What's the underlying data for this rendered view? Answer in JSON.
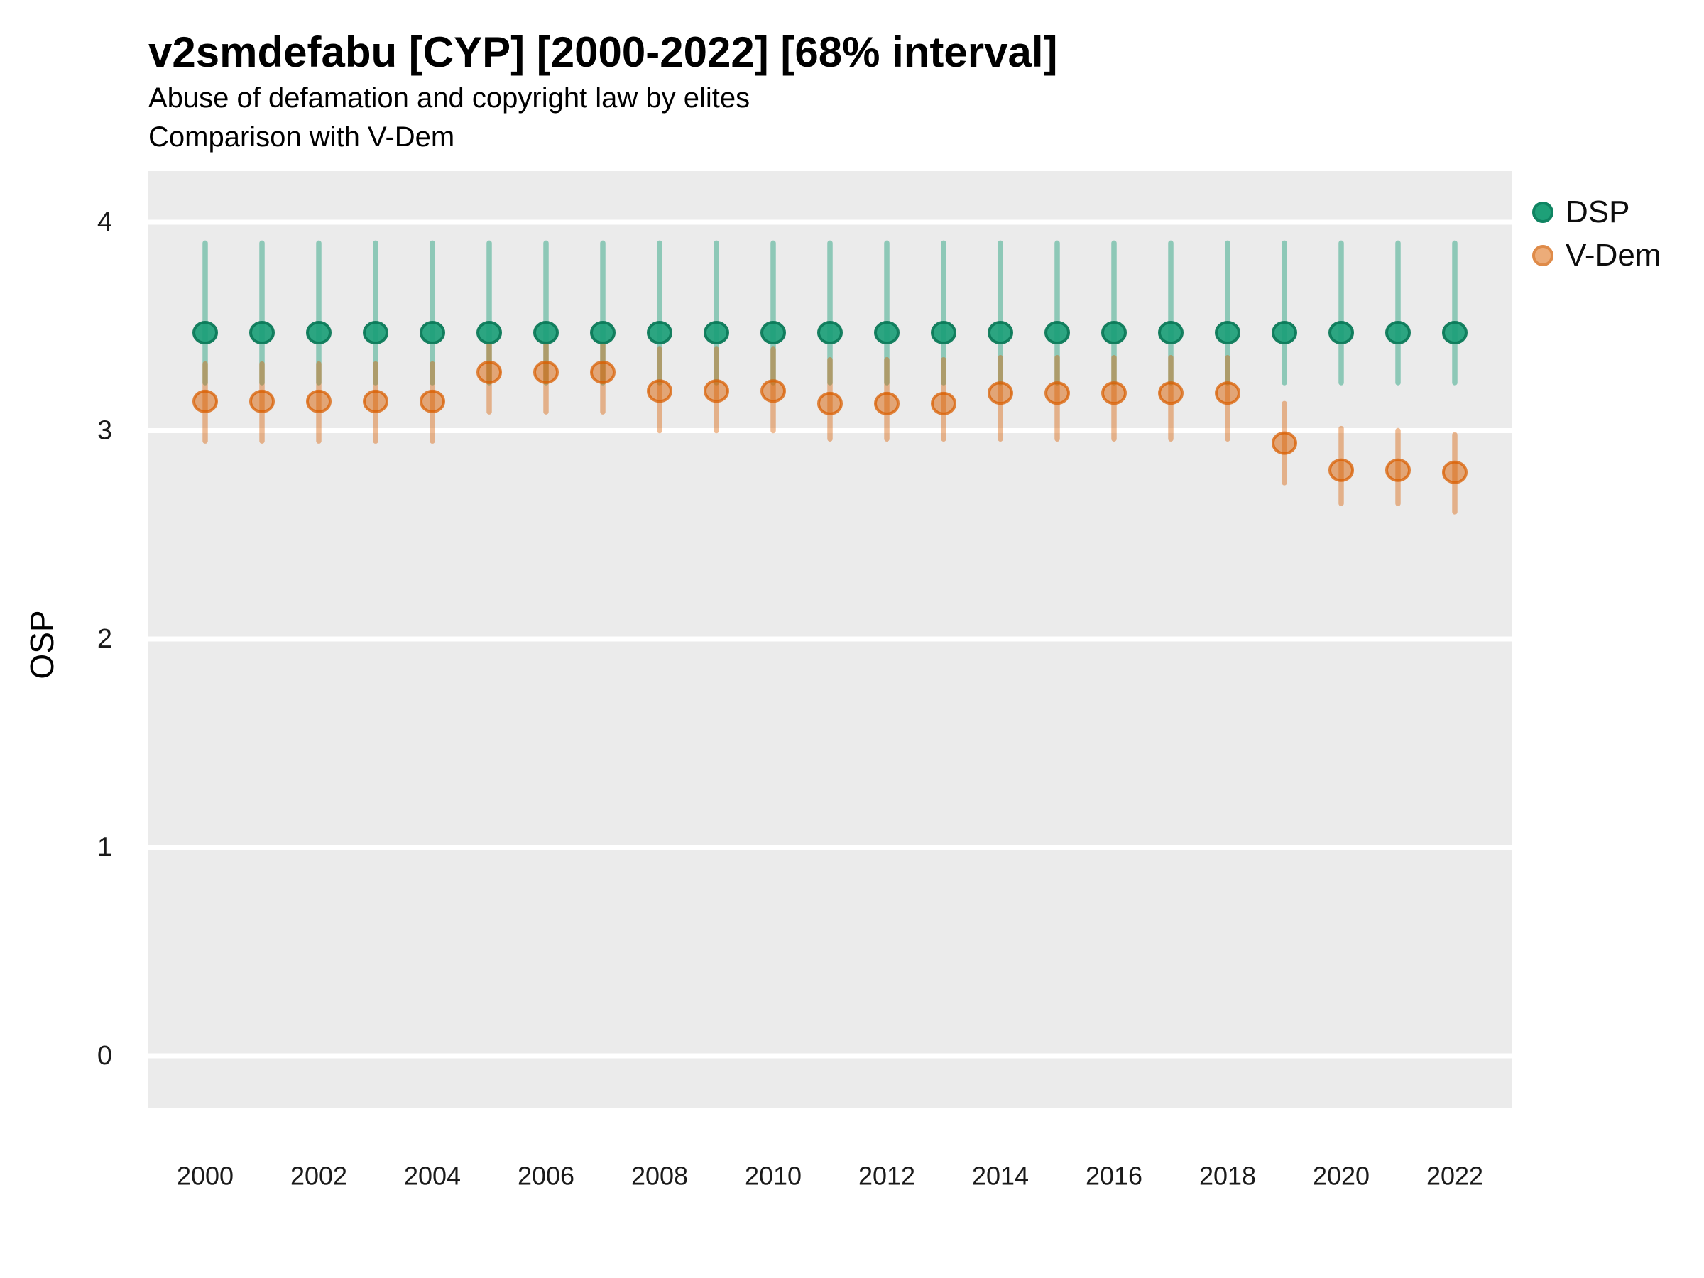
{
  "chart_data": {
    "type": "pointrange",
    "title": "v2smdefabu [CYP] [2000-2022] [68% interval]",
    "subtitle": "Abuse of defamation and copyright law by elites",
    "subtitle2": "Comparison with V-Dem",
    "ylabel": "OSP",
    "interval_shown": "68%",
    "panel_bg": "#ebebeb",
    "grid_color": "#ffffff",
    "axis_text_color": "#1a1a1a",
    "grid": "major horizontal only, white on grey panel",
    "legend_position": "right, upper",
    "x_tick_labels": [
      "2000",
      "2002",
      "2004",
      "2006",
      "2008",
      "2010",
      "2012",
      "2014",
      "2016",
      "2018",
      "2020",
      "2022"
    ],
    "y_tick_labels": [
      "0",
      "1",
      "2",
      "3",
      "4"
    ],
    "ylim": [
      -0.25,
      4.23
    ],
    "x_range_years": [
      2000,
      2022
    ],
    "series": [
      {
        "name": "DSP",
        "base_color": "#1b9e77",
        "line_color": "rgba(27,158,119,0.45)",
        "point_fill": "rgba(27,158,119,0.92)",
        "point_stroke": "rgba(13,122,90,0.95)",
        "legend_fill": "#1ea078",
        "legend_stroke": "#108462",
        "years": [
          2000,
          2001,
          2002,
          2003,
          2004,
          2005,
          2006,
          2007,
          2008,
          2009,
          2010,
          2011,
          2012,
          2013,
          2014,
          2015,
          2016,
          2017,
          2018,
          2019,
          2020,
          2021,
          2022
        ],
        "est": [
          3.47,
          3.47,
          3.47,
          3.47,
          3.47,
          3.47,
          3.47,
          3.47,
          3.47,
          3.47,
          3.47,
          3.47,
          3.47,
          3.47,
          3.47,
          3.47,
          3.47,
          3.47,
          3.47,
          3.47,
          3.47,
          3.47,
          3.47
        ],
        "lo": [
          3.23,
          3.23,
          3.23,
          3.23,
          3.23,
          3.23,
          3.23,
          3.23,
          3.23,
          3.23,
          3.23,
          3.23,
          3.23,
          3.23,
          3.23,
          3.23,
          3.23,
          3.23,
          3.23,
          3.23,
          3.23,
          3.23,
          3.23
        ],
        "hi": [
          3.9,
          3.9,
          3.9,
          3.9,
          3.9,
          3.9,
          3.9,
          3.9,
          3.9,
          3.9,
          3.9,
          3.9,
          3.9,
          3.9,
          3.9,
          3.9,
          3.9,
          3.9,
          3.9,
          3.9,
          3.9,
          3.9,
          3.9
        ]
      },
      {
        "name": "V-Dem",
        "base_color": "#d95f02",
        "line_color": "rgba(217,95,2,0.42)",
        "point_fill": "rgba(217,95,2,0.5)",
        "point_stroke": "rgba(217,95,2,0.75)",
        "legend_fill": "#ecac79",
        "legend_stroke": "#df8b49",
        "years": [
          2000,
          2001,
          2002,
          2003,
          2004,
          2005,
          2006,
          2007,
          2008,
          2009,
          2010,
          2011,
          2012,
          2013,
          2014,
          2015,
          2016,
          2017,
          2018,
          2019,
          2020,
          2021,
          2022
        ],
        "est": [
          3.14,
          3.14,
          3.14,
          3.14,
          3.14,
          3.28,
          3.28,
          3.28,
          3.19,
          3.19,
          3.19,
          3.13,
          3.13,
          3.13,
          3.18,
          3.18,
          3.18,
          3.18,
          3.18,
          2.94,
          2.81,
          2.81,
          2.8
        ],
        "lo": [
          2.95,
          2.95,
          2.95,
          2.95,
          2.95,
          3.09,
          3.09,
          3.09,
          3.0,
          3.0,
          3.0,
          2.96,
          2.96,
          2.96,
          2.96,
          2.96,
          2.96,
          2.96,
          2.96,
          2.75,
          2.65,
          2.65,
          2.61
        ],
        "hi": [
          3.32,
          3.32,
          3.32,
          3.32,
          3.32,
          3.42,
          3.42,
          3.42,
          3.39,
          3.39,
          3.39,
          3.34,
          3.34,
          3.34,
          3.35,
          3.35,
          3.35,
          3.35,
          3.35,
          3.13,
          3.01,
          3.0,
          2.98
        ]
      }
    ]
  }
}
